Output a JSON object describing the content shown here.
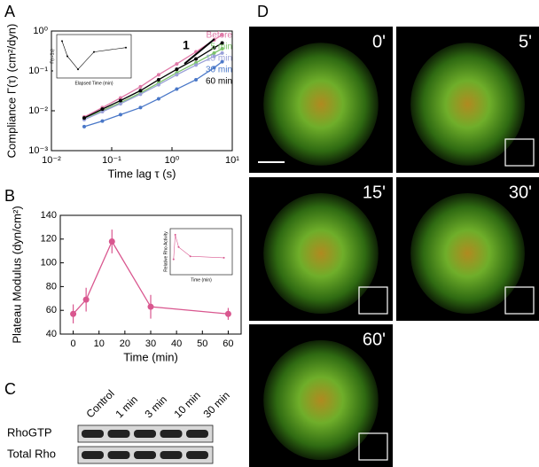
{
  "panel_labels": [
    "A",
    "B",
    "C",
    "D"
  ],
  "chart_data": [
    {
      "type": "line",
      "xlabel": "Time lag τ (s)",
      "ylabel": "Compliance Γ(τ) (cm²/dyn)",
      "log_x": true,
      "log_y": true,
      "xlim": [
        0.01,
        10
      ],
      "ylim": [
        0.001,
        1
      ],
      "xticks": [
        {
          "value": 0.01,
          "label": "10⁻²"
        },
        {
          "value": 0.1,
          "label": "10⁻¹"
        },
        {
          "value": 1,
          "label": "10⁰"
        },
        {
          "value": 10,
          "label": "10¹"
        }
      ],
      "yticks": [
        {
          "value": 0.001,
          "label": "10⁻³"
        },
        {
          "value": 0.01,
          "label": "10⁻²"
        },
        {
          "value": 0.1,
          "label": "10⁻¹"
        },
        {
          "value": 1,
          "label": "10⁰"
        }
      ],
      "x": [
        0.035,
        0.07,
        0.14,
        0.3,
        0.6,
        1.2,
        2.5,
        5,
        6.8
      ],
      "series": [
        {
          "name": "Before",
          "color": "#e07aa8",
          "values": [
            0.007,
            0.012,
            0.021,
            0.04,
            0.08,
            0.15,
            0.3,
            0.6,
            0.8
          ]
        },
        {
          "name": "5 min",
          "color": "#7cc36a",
          "values": [
            0.0065,
            0.01,
            0.016,
            0.028,
            0.05,
            0.09,
            0.16,
            0.28,
            0.36
          ]
        },
        {
          "name": "15 min",
          "color": "#9aa0d8",
          "values": [
            0.006,
            0.0095,
            0.015,
            0.026,
            0.045,
            0.08,
            0.14,
            0.23,
            0.28
          ]
        },
        {
          "name": "30 min",
          "color": "#4a78c8",
          "values": [
            0.004,
            0.0055,
            0.008,
            0.012,
            0.02,
            0.035,
            0.06,
            0.12,
            0.17
          ]
        },
        {
          "name": "60 min",
          "color": "#000000",
          "values": [
            0.0066,
            0.011,
            0.018,
            0.032,
            0.06,
            0.11,
            0.2,
            0.38,
            0.5
          ]
        }
      ],
      "annotations": [
        "1"
      ]
    },
    {
      "type": "line",
      "xlabel": "Elapsed Time (min)",
      "ylabel": "Γ(τ=1s)",
      "xlim": [
        -5,
        65
      ],
      "ylim": [
        0,
        1
      ],
      "x": [
        0,
        5,
        15,
        30,
        60
      ],
      "values": [
        0.85,
        0.5,
        0.2,
        0.6,
        0.7
      ],
      "color": "#000000"
    },
    {
      "type": "line",
      "xlabel": "Time (min)",
      "ylabel": "Plateau Modulus (dyn/cm²)",
      "xlim": [
        -5,
        65
      ],
      "ylim": [
        40,
        140
      ],
      "xticks": [
        0,
        10,
        20,
        30,
        40,
        50,
        60
      ],
      "yticks": [
        40,
        60,
        80,
        100,
        120,
        140
      ],
      "x": [
        0,
        5,
        15,
        30,
        60
      ],
      "values": [
        57,
        69,
        118,
        63,
        57
      ],
      "errors": [
        8,
        10,
        10,
        10,
        5
      ],
      "color": "#d9578f"
    },
    {
      "type": "line",
      "xlabel": "Time (min)",
      "ylabel": "Relative Rho Activity",
      "xlim": [
        -2,
        35
      ],
      "ylim": [
        0,
        3
      ],
      "x": [
        0,
        1,
        3,
        10,
        30
      ],
      "values": [
        1,
        2.6,
        1.8,
        1.2,
        1.1
      ],
      "color": "#d9578f"
    }
  ],
  "blot": {
    "lanes": [
      "Control",
      "1 min",
      "3 min",
      "10 min",
      "30 min"
    ],
    "rows": [
      "RhoGTP",
      "Total Rho"
    ]
  },
  "micrographs": [
    "0'",
    "5'",
    "15'",
    "30'",
    "60'"
  ]
}
